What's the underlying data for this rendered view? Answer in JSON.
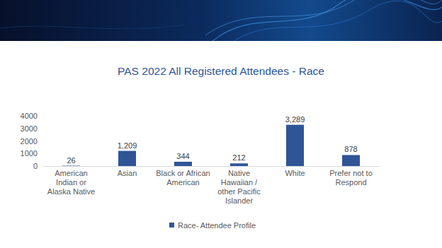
{
  "chart_data": {
    "type": "bar",
    "title": "PAS 2022 All Registered Attendees - Race",
    "categories": [
      "American Indian or Alaska Native",
      "Asian",
      "Black or African American",
      "Native Hawaiian / other Pacific Islander",
      "White",
      "Prefer not to Respond"
    ],
    "series": [
      {
        "name": "Race- Attendee Profile",
        "color": "#2f5597",
        "values": [
          26,
          1209,
          344,
          212,
          3289,
          878
        ],
        "value_labels": [
          "26",
          "1,209",
          "344",
          "212",
          "3,289",
          "878"
        ]
      }
    ],
    "ylim": [
      0,
      4000
    ],
    "yticks": [
      0,
      1000,
      2000,
      3000,
      4000
    ],
    "grid": false,
    "legend": "bottom",
    "data_labels": true
  }
}
